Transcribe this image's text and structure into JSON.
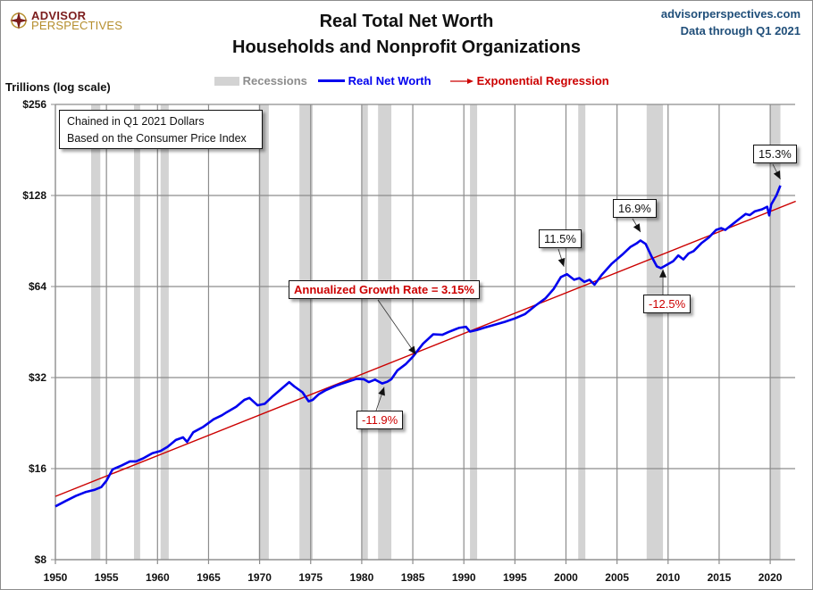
{
  "logo": {
    "line1": "ADVISOR",
    "line2": "PERSPECTIVES"
  },
  "header": {
    "site": "advisorperspectives.com",
    "data_through": "Data through Q1 2021"
  },
  "note": {
    "line1": "Chained in Q1 2021  Dollars",
    "line2": "Based on the Consumer Price Index"
  },
  "colors": {
    "series": "#0000ee",
    "regression": "#cc0000",
    "recession": "#d3d3d3",
    "grid": "#8c8c8c",
    "annotation_negative": "#cc0000"
  },
  "chart_data": {
    "type": "line",
    "title": "Real Total Net Worth",
    "subtitle": "Households and Nonprofit Organizations",
    "ylabel": "Trillions (log scale)",
    "xlabel": "",
    "yscale": "log2",
    "ylim": [
      8,
      256
    ],
    "xlim": [
      1950,
      2022.5
    ],
    "grid": true,
    "legend_position": "top-center",
    "x_ticks": [
      "1950",
      "1955",
      "1960",
      "1965",
      "1970",
      "1975",
      "1980",
      "1985",
      "1990",
      "1995",
      "2000",
      "2005",
      "2010",
      "2015",
      "2020"
    ],
    "y_ticks": [
      {
        "value": 256,
        "label": "$256"
      },
      {
        "value": 128,
        "label": "$128"
      },
      {
        "value": 64,
        "label": "$64"
      },
      {
        "value": 32,
        "label": "$32"
      },
      {
        "value": 16,
        "label": "$16"
      },
      {
        "value": 8,
        "label": "$8"
      }
    ],
    "legend": [
      {
        "name": "Recessions",
        "kind": "band"
      },
      {
        "name": "Real Net Worth",
        "kind": "line"
      },
      {
        "name": "Exponential Regression",
        "kind": "arrow-line"
      }
    ],
    "recessions": [
      [
        1953.5,
        1954.4
      ],
      [
        1957.7,
        1958.3
      ],
      [
        1960.3,
        1961.1
      ],
      [
        1969.9,
        1970.9
      ],
      [
        1973.9,
        1975.2
      ],
      [
        1980.0,
        1980.6
      ],
      [
        1981.6,
        1982.9
      ],
      [
        1990.6,
        1991.3
      ],
      [
        2001.2,
        2001.9
      ],
      [
        2007.9,
        2009.5
      ],
      [
        2020.0,
        2021.0
      ]
    ],
    "series": [
      {
        "name": "Real Net Worth",
        "x": [
          1950,
          1951,
          1952,
          1953,
          1953.8,
          1954.5,
          1955,
          1955.6,
          1956.5,
          1957.3,
          1957.9,
          1958.6,
          1959.5,
          1960.3,
          1961,
          1961.8,
          1962.5,
          1962.9,
          1963.5,
          1964.5,
          1965.5,
          1966.3,
          1966.8,
          1967.7,
          1968.5,
          1969,
          1969.8,
          1970.5,
          1971.3,
          1972.2,
          1972.9,
          1973.4,
          1974.2,
          1974.8,
          1975.2,
          1975.8,
          1976.5,
          1977.5,
          1978.5,
          1979.5,
          1980.2,
          1980.7,
          1981.3,
          1982,
          1982.5,
          1982.9,
          1983.5,
          1984.3,
          1985,
          1986,
          1987,
          1987.9,
          1988.5,
          1989.5,
          1990.2,
          1990.6,
          1991.3,
          1992,
          1993,
          1994,
          1995,
          1996,
          1997,
          1998,
          1998.8,
          1999.5,
          2000.1,
          2000.8,
          2001.3,
          2001.8,
          2002.3,
          2002.8,
          2003.5,
          2004.5,
          2005.5,
          2006.3,
          2006.9,
          2007.3,
          2007.8,
          2008.4,
          2008.9,
          2009.3,
          2009.9,
          2010.5,
          2011,
          2011.5,
          2012,
          2012.5,
          2013.3,
          2014,
          2014.7,
          2015.2,
          2015.6,
          2016.3,
          2017,
          2017.6,
          2018,
          2018.5,
          2019.2,
          2019.7,
          2019.9,
          2020.1,
          2020.6,
          2021
        ],
        "values": [
          12.0,
          12.5,
          13.0,
          13.4,
          13.6,
          13.9,
          14.6,
          15.9,
          16.4,
          16.9,
          16.9,
          17.3,
          18.0,
          18.3,
          18.9,
          19.9,
          20.3,
          19.6,
          21.1,
          22.0,
          23.3,
          24.0,
          24.6,
          25.6,
          27.0,
          27.4,
          25.9,
          26.2,
          27.8,
          29.5,
          30.9,
          29.9,
          28.6,
          26.7,
          27.0,
          28.2,
          29.1,
          30.1,
          30.9,
          31.7,
          31.6,
          30.9,
          31.5,
          30.6,
          31.0,
          31.6,
          33.8,
          35.4,
          37.5,
          41.4,
          44.5,
          44.3,
          45.3,
          46.7,
          47.1,
          45.4,
          46.0,
          46.8,
          47.8,
          48.9,
          50.2,
          51.9,
          55.3,
          58.5,
          62.9,
          68.8,
          70.3,
          67.4,
          68.2,
          66.3,
          67.4,
          64.9,
          69.9,
          76.2,
          81.5,
          86.4,
          88.8,
          90.9,
          88.5,
          80.2,
          74.6,
          73.6,
          75.6,
          77.6,
          81.1,
          78.7,
          82.3,
          83.8,
          89.2,
          93.0,
          98.5,
          99.8,
          98.5,
          102.8,
          107.3,
          111.2,
          110.2,
          113.5,
          115.2,
          117.5,
          110.0,
          119.5,
          128.0,
          138.0
        ]
      },
      {
        "name": "Exponential Regression",
        "x": [
          1950,
          2022.5
        ],
        "values": [
          12.95,
          122.5
        ]
      }
    ],
    "annotations": [
      {
        "text": "Annualized Growth Rate = 3.15%",
        "color": "negative",
        "target": [
          1985.3,
          36.6
        ]
      },
      {
        "text": "-11.9%",
        "color": "negative",
        "target": [
          1982.2,
          31.0
        ]
      },
      {
        "text": "11.5%",
        "color": "neutral",
        "target": [
          1999.8,
          71.5
        ]
      },
      {
        "text": "16.9%",
        "color": "neutral",
        "target": [
          2007.3,
          93.0
        ]
      },
      {
        "text": "-12.5%",
        "color": "negative",
        "target": [
          2009.5,
          76.0
        ]
      },
      {
        "text": "15.3%",
        "color": "neutral",
        "target": [
          2021,
          139.0
        ]
      }
    ]
  }
}
